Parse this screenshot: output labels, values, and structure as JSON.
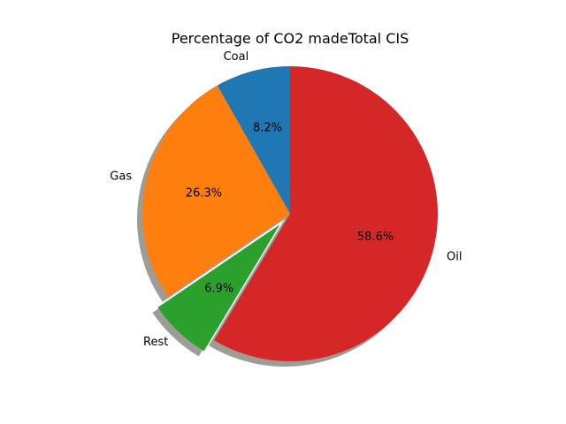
{
  "chart_data": {
    "type": "pie",
    "title": "Percentage of CO2 madeTotal CIS",
    "start_angle_deg": 90,
    "direction": "counterclockwise",
    "shadow": true,
    "slices": [
      {
        "label": "Coal",
        "value": 8.2,
        "pct_label": "8.2%",
        "color": "#1f77b4",
        "explode": 0
      },
      {
        "label": "Gas",
        "value": 26.3,
        "pct_label": "26.3%",
        "color": "#ff7f0e",
        "explode": 0
      },
      {
        "label": "Rest",
        "value": 6.9,
        "pct_label": "6.9%",
        "color": "#2ca02c",
        "explode": 0.1
      },
      {
        "label": "Oil",
        "value": 58.6,
        "pct_label": "58.6%",
        "color": "#d62728",
        "explode": 0
      }
    ]
  }
}
